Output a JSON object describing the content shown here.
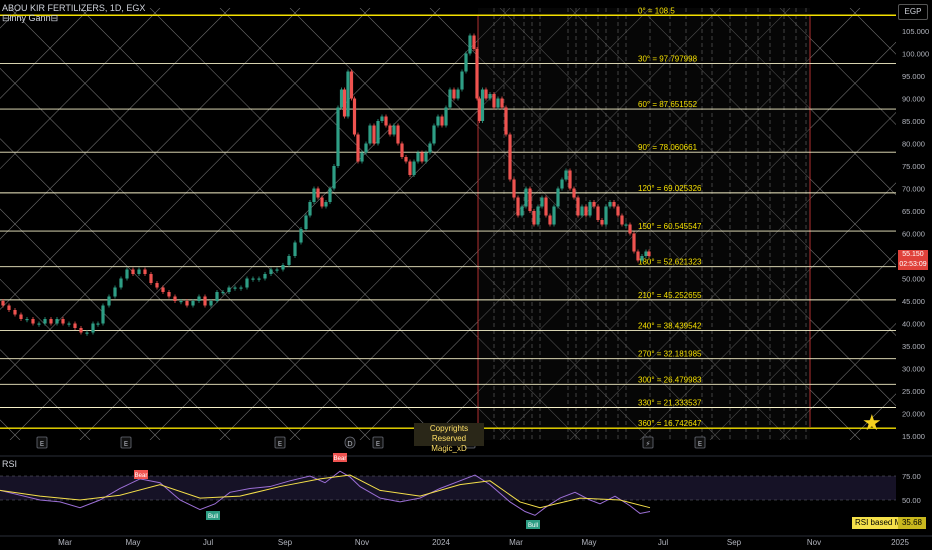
{
  "header": {
    "symbol_title": "ABOU KIR FERTILIZERS, 1D, EGX",
    "indicator_name": "⊟inny Gann⊟",
    "currency": "EGP"
  },
  "copyright": {
    "line1": "Copyrights Reserved",
    "line2": "Magic_xD"
  },
  "price_tag": {
    "price": "55.150",
    "countdown": "02:53:09"
  },
  "rsi": {
    "label": "RSI",
    "ma_label": "RSI based MA",
    "value": "35.68",
    "levels": [
      75.0,
      50.0
    ],
    "level_labels": [
      "75.00",
      "50.00"
    ],
    "bull_labels": [
      "Bull",
      "Bull"
    ],
    "bear_labels": [
      "Bear",
      "Bear"
    ]
  },
  "colors": {
    "background": "#000000",
    "gann_level": "#f5f0c8",
    "gann_top_bottom": "#f5e000",
    "diagonal": "#8a8a8a",
    "up_candle": "#2e9e85",
    "down_candle": "#ef5350",
    "rsi_line": "#9c6fd6",
    "rsi_ma": "#f5e04a",
    "red_vline": "#b03030",
    "star": "#f5d020"
  },
  "chart_data": {
    "type": "candlestick",
    "title": "ABOU KIR FERTILIZERS, 1D, EGX",
    "y_axis": {
      "ticks": [
        15,
        20,
        25,
        30,
        35,
        40,
        45,
        50,
        55,
        60,
        65,
        70,
        75,
        80,
        85,
        90,
        95,
        100,
        105
      ],
      "tick_labels": [
        "15.000",
        "20.000",
        "25.000",
        "30.000",
        "35.000",
        "40.000",
        "45.000",
        "50.000",
        "55.000",
        "60.000",
        "65.000",
        "70.000",
        "75.000",
        "80.000",
        "85.000",
        "90.000",
        "95.000",
        "100.000",
        "105.000"
      ],
      "range": [
        12,
        110
      ]
    },
    "x_axis": {
      "tick_labels": [
        "Mar",
        "May",
        "Jul",
        "Sep",
        "Nov",
        "2024",
        "Mar",
        "May",
        "Jul",
        "Sep",
        "Nov",
        "2025"
      ]
    },
    "gann_levels": [
      {
        "label": "0° = 108.5",
        "value": 108.5
      },
      {
        "label": "30° = 97.797998",
        "value": 97.797998
      },
      {
        "label": "60° = 87.651552",
        "value": 87.651552
      },
      {
        "label": "90° = 78.060661",
        "value": 78.060661
      },
      {
        "label": "120° = 69.025326",
        "value": 69.025326
      },
      {
        "label": "150° = 60.545547",
        "value": 60.545547
      },
      {
        "label": "180° = 52.621323",
        "value": 52.621323
      },
      {
        "label": "210° = 45.252655",
        "value": 45.252655
      },
      {
        "label": "240° = 38.439542",
        "value": 38.439542
      },
      {
        "label": "270° = 32.181985",
        "value": 32.181985
      },
      {
        "label": "300° = 26.479983",
        "value": 26.479983
      },
      {
        "label": "330° = 21.333537",
        "value": 21.333537
      },
      {
        "label": "360° = 16.742647",
        "value": 16.742647
      }
    ],
    "price_path": [
      [
        0,
        45
      ],
      [
        6,
        44
      ],
      [
        12,
        43
      ],
      [
        18,
        42
      ],
      [
        24,
        41
      ],
      [
        30,
        41
      ],
      [
        36,
        40
      ],
      [
        42,
        40
      ],
      [
        48,
        41
      ],
      [
        54,
        40
      ],
      [
        60,
        41
      ],
      [
        66,
        40
      ],
      [
        72,
        40
      ],
      [
        78,
        39
      ],
      [
        84,
        38
      ],
      [
        90,
        38
      ],
      [
        96,
        40
      ],
      [
        100,
        40
      ],
      [
        106,
        44
      ],
      [
        112,
        46
      ],
      [
        118,
        48
      ],
      [
        124,
        50
      ],
      [
        130,
        52
      ],
      [
        136,
        51
      ],
      [
        142,
        52
      ],
      [
        148,
        51
      ],
      [
        154,
        49
      ],
      [
        160,
        48
      ],
      [
        166,
        47
      ],
      [
        172,
        46
      ],
      [
        178,
        45
      ],
      [
        184,
        45
      ],
      [
        190,
        44
      ],
      [
        196,
        45
      ],
      [
        202,
        46
      ],
      [
        208,
        44
      ],
      [
        214,
        45
      ],
      [
        220,
        47
      ],
      [
        226,
        47
      ],
      [
        232,
        48
      ],
      [
        238,
        48
      ],
      [
        244,
        48
      ],
      [
        250,
        50
      ],
      [
        256,
        50
      ],
      [
        262,
        50
      ],
      [
        268,
        51
      ],
      [
        274,
        52
      ],
      [
        280,
        52
      ],
      [
        286,
        53
      ],
      [
        292,
        55
      ],
      [
        298,
        58
      ],
      [
        304,
        61
      ],
      [
        308,
        64
      ],
      [
        312,
        67
      ],
      [
        316,
        70
      ],
      [
        320,
        68
      ],
      [
        324,
        66
      ],
      [
        328,
        67
      ],
      [
        332,
        70
      ],
      [
        336,
        75
      ],
      [
        340,
        88
      ],
      [
        343,
        92
      ],
      [
        346,
        86
      ],
      [
        350,
        96
      ],
      [
        353,
        90
      ],
      [
        356,
        82
      ],
      [
        360,
        76
      ],
      [
        364,
        78
      ],
      [
        368,
        80
      ],
      [
        372,
        84
      ],
      [
        376,
        80
      ],
      [
        380,
        85
      ],
      [
        384,
        86
      ],
      [
        388,
        84
      ],
      [
        392,
        82
      ],
      [
        396,
        84
      ],
      [
        400,
        80
      ],
      [
        404,
        77
      ],
      [
        408,
        76
      ],
      [
        412,
        73
      ],
      [
        416,
        76
      ],
      [
        420,
        78
      ],
      [
        424,
        76
      ],
      [
        428,
        78
      ],
      [
        432,
        80
      ],
      [
        436,
        84
      ],
      [
        440,
        86
      ],
      [
        444,
        84
      ],
      [
        448,
        88
      ],
      [
        452,
        92
      ],
      [
        456,
        90
      ],
      [
        460,
        92
      ],
      [
        464,
        96
      ],
      [
        468,
        100
      ],
      [
        472,
        104
      ],
      [
        476,
        101
      ],
      [
        478,
        90
      ],
      [
        481,
        85
      ],
      [
        484,
        92
      ],
      [
        488,
        90
      ],
      [
        492,
        91
      ],
      [
        496,
        88
      ],
      [
        500,
        90
      ],
      [
        504,
        88
      ],
      [
        508,
        82
      ],
      [
        512,
        72
      ],
      [
        516,
        68
      ],
      [
        520,
        64
      ],
      [
        524,
        66
      ],
      [
        528,
        70
      ],
      [
        532,
        65
      ],
      [
        536,
        62
      ],
      [
        540,
        66
      ],
      [
        544,
        68
      ],
      [
        548,
        64
      ],
      [
        552,
        62
      ],
      [
        556,
        66
      ],
      [
        560,
        70
      ],
      [
        564,
        72
      ],
      [
        568,
        74
      ],
      [
        572,
        70
      ],
      [
        576,
        68
      ],
      [
        580,
        64
      ],
      [
        584,
        66
      ],
      [
        588,
        64
      ],
      [
        592,
        67
      ],
      [
        596,
        66
      ],
      [
        600,
        63
      ],
      [
        604,
        62
      ],
      [
        608,
        66
      ],
      [
        612,
        67
      ],
      [
        616,
        66
      ],
      [
        620,
        64
      ],
      [
        624,
        62
      ],
      [
        628,
        62
      ],
      [
        632,
        60
      ],
      [
        636,
        56
      ],
      [
        640,
        54
      ],
      [
        644,
        55
      ],
      [
        648,
        56
      ],
      [
        650,
        55
      ]
    ],
    "rsi_path": [
      [
        0,
        60
      ],
      [
        20,
        55
      ],
      [
        40,
        50
      ],
      [
        60,
        48
      ],
      [
        80,
        42
      ],
      [
        100,
        50
      ],
      [
        120,
        62
      ],
      [
        140,
        72
      ],
      [
        160,
        68
      ],
      [
        180,
        50
      ],
      [
        200,
        40
      ],
      [
        215,
        46
      ],
      [
        230,
        58
      ],
      [
        250,
        62
      ],
      [
        270,
        64
      ],
      [
        290,
        70
      ],
      [
        310,
        75
      ],
      [
        325,
        68
      ],
      [
        340,
        80
      ],
      [
        350,
        74
      ],
      [
        360,
        64
      ],
      [
        380,
        52
      ],
      [
        400,
        48
      ],
      [
        420,
        52
      ],
      [
        440,
        62
      ],
      [
        460,
        70
      ],
      [
        475,
        76
      ],
      [
        490,
        66
      ],
      [
        510,
        48
      ],
      [
        525,
        38
      ],
      [
        535,
        34
      ],
      [
        545,
        42
      ],
      [
        560,
        52
      ],
      [
        575,
        58
      ],
      [
        590,
        50
      ],
      [
        600,
        46
      ],
      [
        615,
        54
      ],
      [
        630,
        44
      ],
      [
        640,
        36
      ],
      [
        650,
        38
      ]
    ],
    "rsi_ma_path": [
      [
        0,
        60
      ],
      [
        40,
        54
      ],
      [
        80,
        50
      ],
      [
        120,
        55
      ],
      [
        160,
        66
      ],
      [
        200,
        52
      ],
      [
        240,
        54
      ],
      [
        280,
        64
      ],
      [
        320,
        72
      ],
      [
        350,
        76
      ],
      [
        380,
        60
      ],
      [
        420,
        54
      ],
      [
        460,
        66
      ],
      [
        490,
        70
      ],
      [
        520,
        48
      ],
      [
        540,
        42
      ],
      [
        580,
        52
      ],
      [
        620,
        50
      ],
      [
        650,
        42
      ]
    ]
  }
}
